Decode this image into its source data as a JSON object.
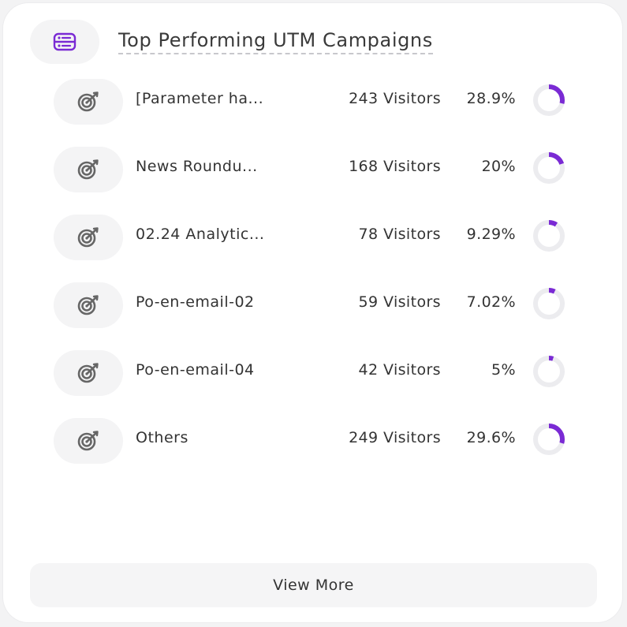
{
  "header": {
    "title": "Top Performing UTM Campaigns",
    "icon": "list-icon"
  },
  "colors": {
    "accent": "#7a2ad4",
    "track": "#ececef"
  },
  "campaigns": [
    {
      "name": "[Parameter ha...",
      "visitors": "243 Visitors",
      "percent_label": "28.9%",
      "percent": 28.9,
      "icon": "target-icon"
    },
    {
      "name": "News Roundu...",
      "visitors": "168 Visitors",
      "percent_label": "20%",
      "percent": 20,
      "icon": "target-icon"
    },
    {
      "name": "02.24 Analytic...",
      "visitors": "78 Visitors",
      "percent_label": "9.29%",
      "percent": 9.29,
      "icon": "target-icon"
    },
    {
      "name": "Po-en-email-02",
      "visitors": "59 Visitors",
      "percent_label": "7.02%",
      "percent": 7.02,
      "icon": "target-icon"
    },
    {
      "name": "Po-en-email-04",
      "visitors": "42 Visitors",
      "percent_label": "5%",
      "percent": 5,
      "icon": "target-icon"
    },
    {
      "name": "Others",
      "visitors": "249 Visitors",
      "percent_label": "29.6%",
      "percent": 29.6,
      "icon": "target-icon"
    }
  ],
  "footer": {
    "view_more_label": "View More"
  }
}
